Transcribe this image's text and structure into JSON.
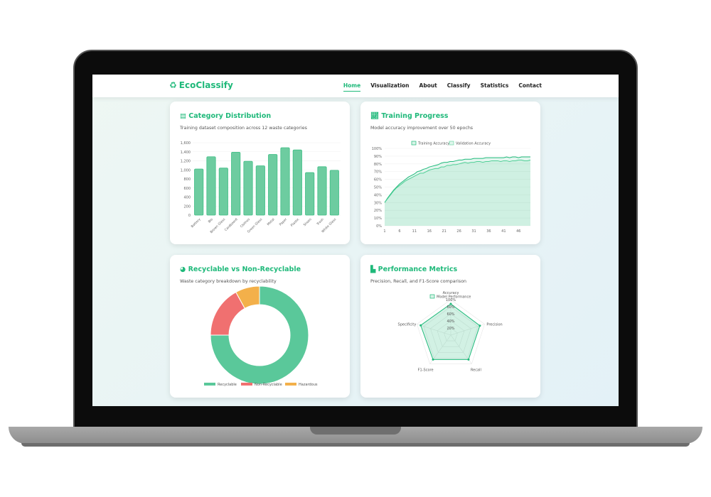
{
  "brand": {
    "name": "EcoClassify",
    "icon": "recycle-icon"
  },
  "nav": {
    "items": [
      "Home",
      "Visualization",
      "About",
      "Classify",
      "Statistics",
      "Contact"
    ],
    "active": "Home"
  },
  "colors": {
    "accent": "#1fb97a",
    "bar": "#6dcca0",
    "recyclable": "#5ac89a",
    "non_recyclable": "#f07070",
    "hazardous": "#f3b04a"
  },
  "cards": {
    "category": {
      "title": "Category Distribution",
      "subtitle": "Training dataset composition across 12 waste categories",
      "icon": "bar-chart-icon"
    },
    "training": {
      "title": "Training Progress",
      "subtitle": "Model accuracy improvement over 50 epochs",
      "icon": "line-chart-icon"
    },
    "recyclable": {
      "title": "Recyclable vs Non-Recyclable",
      "subtitle": "Waste category breakdown by recyclability",
      "icon": "pie-chart-icon"
    },
    "performance": {
      "title": "Performance Metrics",
      "subtitle": "Precision, Recall, and F1-Score comparison",
      "icon": "area-chart-icon"
    }
  },
  "chart_data": [
    {
      "type": "bar",
      "categories": [
        "Battery",
        "Bio",
        "Brown Glass",
        "Cardboard",
        "Clothes",
        "Green Glass",
        "Metal",
        "Paper",
        "Plastic",
        "Shoes",
        "Trash",
        "White Glass"
      ],
      "values": [
        1020,
        1290,
        1040,
        1390,
        1190,
        1090,
        1340,
        1490,
        1440,
        940,
        1070,
        990
      ],
      "ylim": [
        0,
        1600
      ],
      "yticks": [
        "0",
        "200",
        "400",
        "600",
        "800",
        "1,000",
        "1,200",
        "1,400",
        "1,600"
      ],
      "grid": true
    },
    {
      "type": "line",
      "x_ticks": [
        "1",
        "6",
        "11",
        "16",
        "21",
        "26",
        "31",
        "36",
        "41",
        "46"
      ],
      "yticks": [
        "0%",
        "10%",
        "20%",
        "30%",
        "40%",
        "50%",
        "60%",
        "70%",
        "80%",
        "90%",
        "100%"
      ],
      "ylim": [
        0,
        100
      ],
      "legend": "top",
      "series": [
        {
          "name": "Training Accuracy",
          "values": [
            30,
            36,
            41,
            46,
            50,
            54,
            57,
            60,
            63,
            65,
            67,
            70,
            71,
            73,
            74,
            76,
            77,
            78,
            79,
            81,
            82,
            82,
            83,
            83,
            84,
            85,
            85,
            86,
            86,
            86,
            87,
            87,
            87,
            87,
            88,
            88,
            88,
            88,
            88,
            88,
            88,
            89,
            88,
            89,
            89,
            88,
            89,
            89,
            89,
            89
          ]
        },
        {
          "name": "Validation Accuracy",
          "values": [
            30,
            35,
            40,
            45,
            49,
            52,
            55,
            58,
            60,
            62,
            64,
            66,
            68,
            68,
            70,
            72,
            73,
            74,
            74,
            76,
            76,
            78,
            78,
            79,
            79,
            80,
            81,
            82,
            81,
            82,
            82,
            83,
            83,
            82,
            83,
            83,
            84,
            84,
            84,
            83,
            84,
            84,
            83,
            84,
            84,
            85,
            85,
            84,
            84,
            85
          ]
        }
      ]
    },
    {
      "type": "pie",
      "labels": [
        "Recyclable",
        "Non-Recyclable",
        "Hazardous"
      ],
      "values": [
        75,
        17,
        8
      ],
      "legend": "bottom"
    },
    {
      "type": "radar",
      "labels": [
        "Accuracy",
        "Precision",
        "Recall",
        "F1-Score",
        "Specificity"
      ],
      "series": [
        {
          "name": "Model Performance",
          "values": [
            88,
            86,
            85,
            85,
            89
          ]
        }
      ],
      "rticks": [
        "20%",
        "40%",
        "60%",
        "80%",
        "100%"
      ],
      "rlim": [
        0,
        100
      ]
    }
  ]
}
